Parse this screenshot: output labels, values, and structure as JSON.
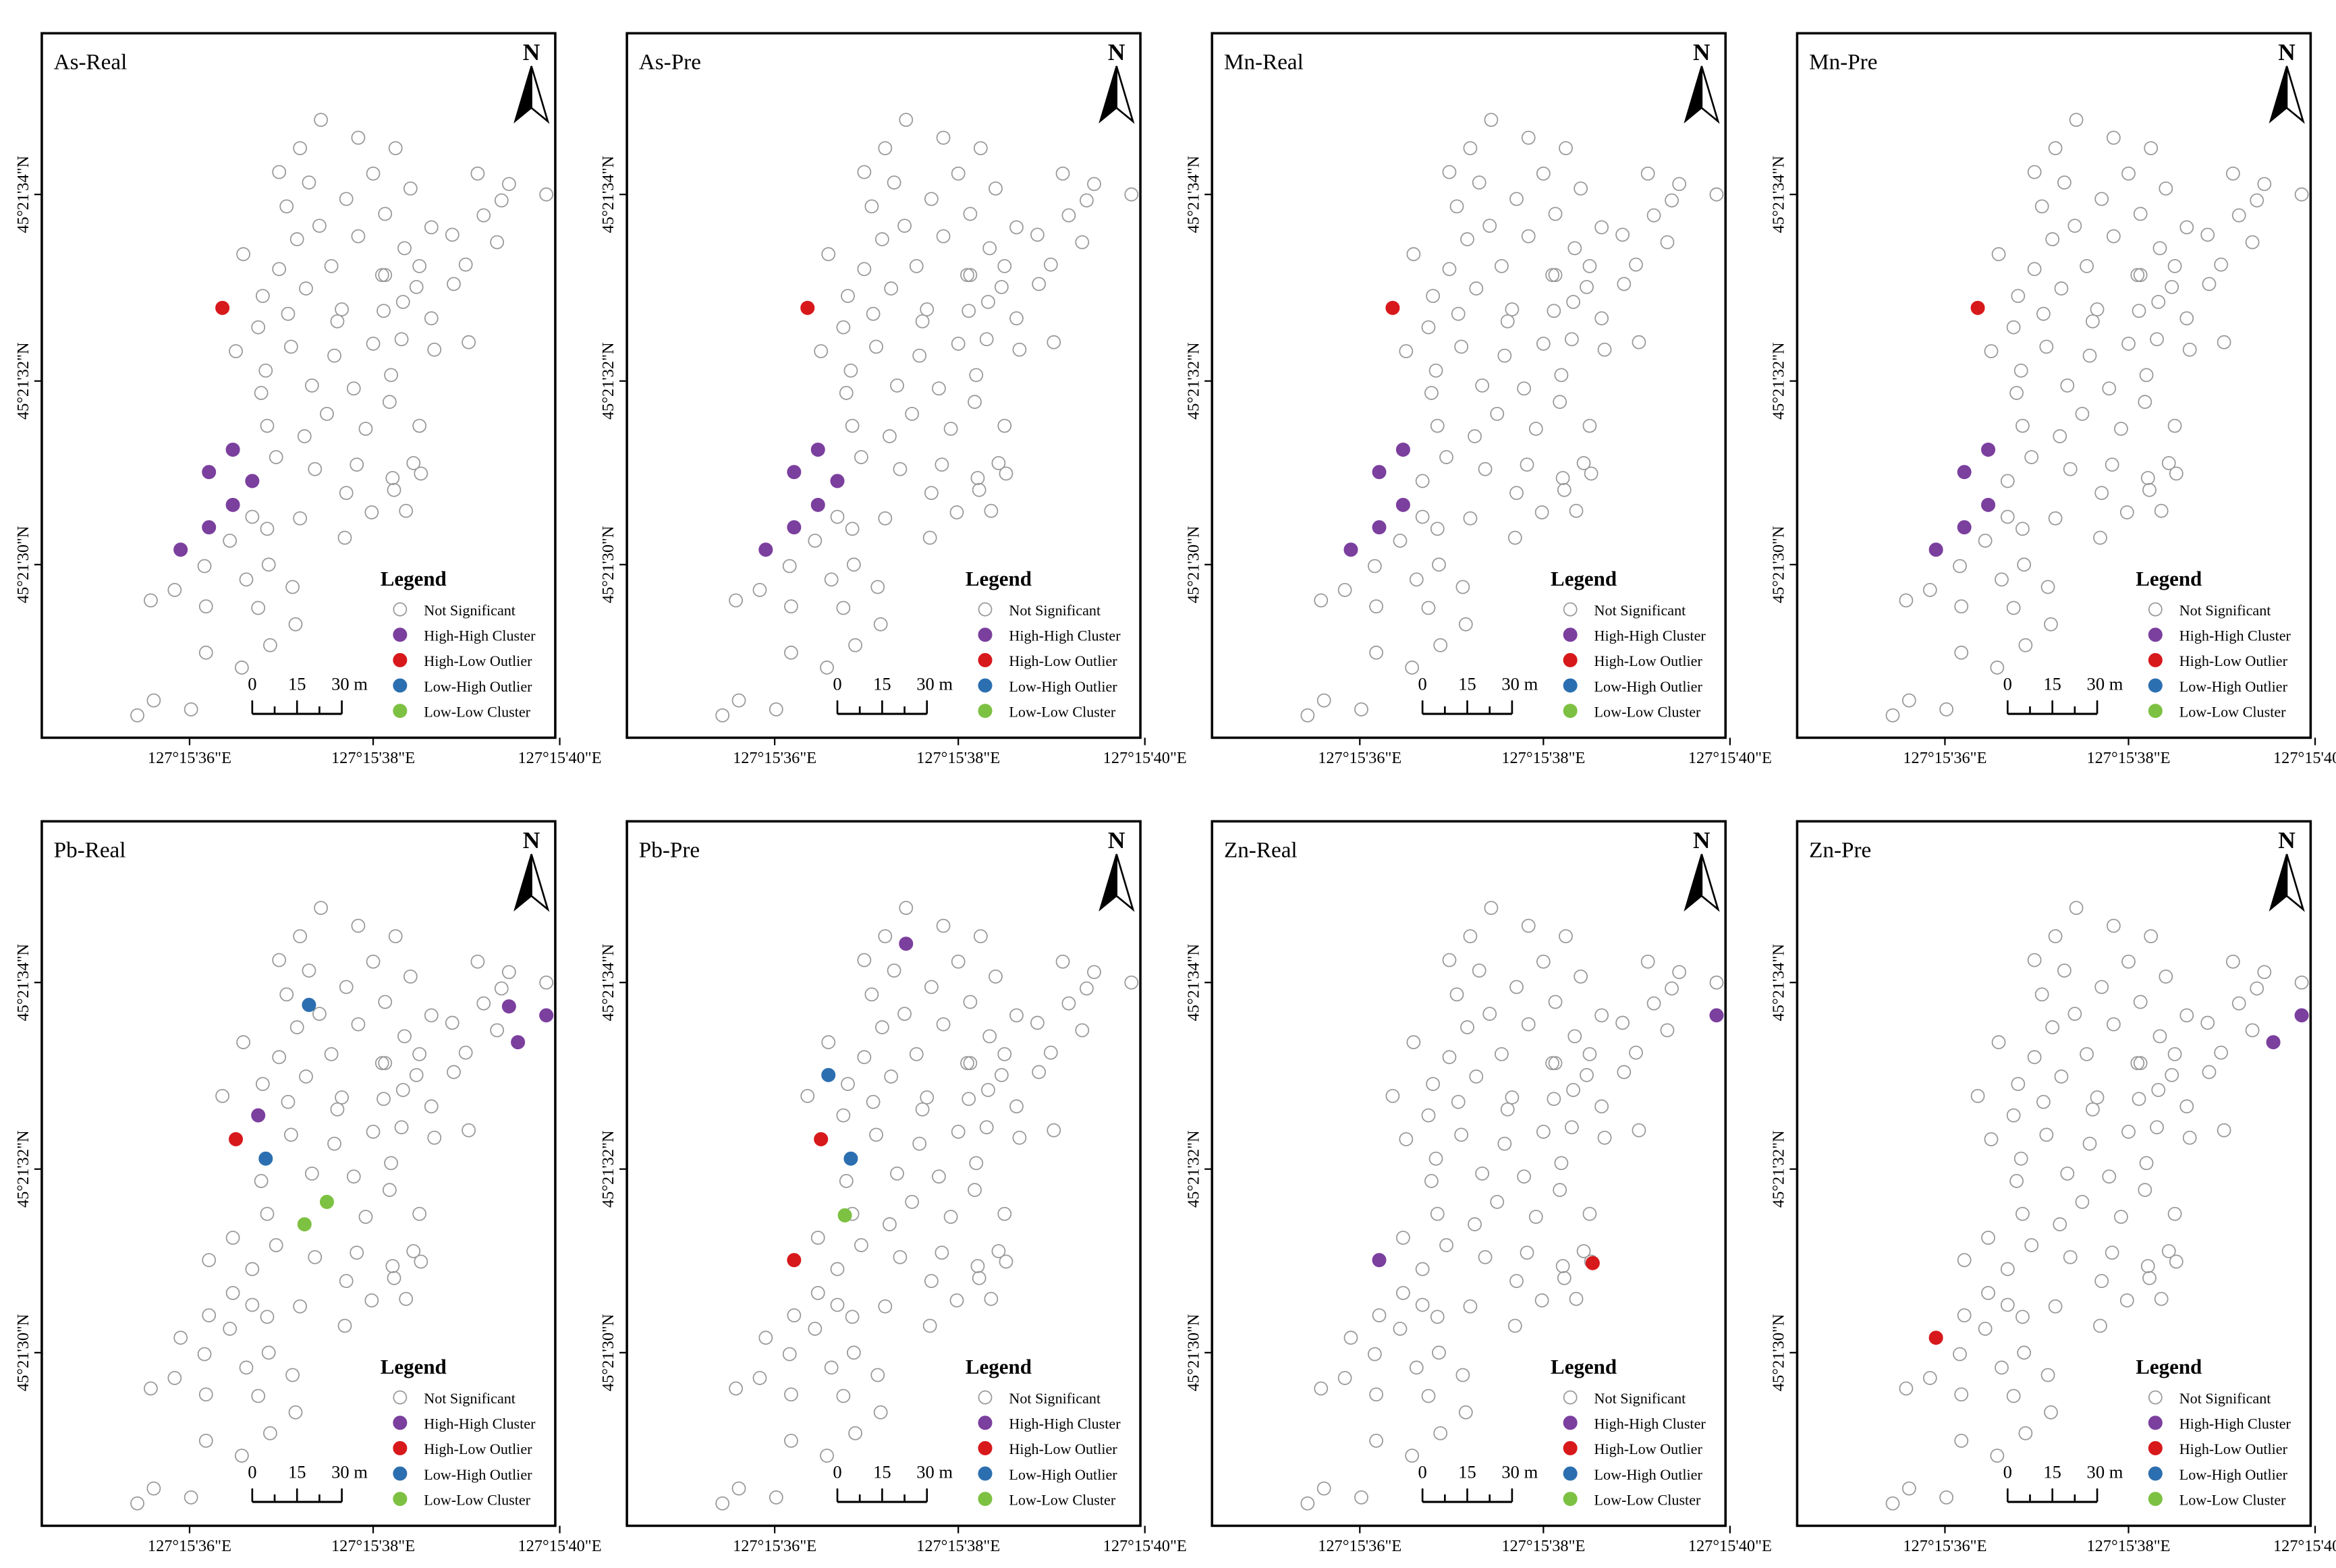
{
  "figure": {
    "x_ticks": [
      "127°15'36\"E",
      "127°15'38\"E",
      "127°15'40\"E"
    ],
    "y_ticks": [
      "45°21'34\"N",
      "45°21'32\"N",
      "45°21'30\"N"
    ],
    "north_label": "N",
    "legend": {
      "title": "Legend",
      "items": [
        {
          "key": "ns",
          "label": "Not Significant",
          "fill": "none",
          "stroke": "#999999"
        },
        {
          "key": "hh",
          "label": "High-High Cluster",
          "fill": "#7B3F9E",
          "stroke": "#7B3F9E"
        },
        {
          "key": "hl",
          "label": "High-Low Outlier",
          "fill": "#D7191C",
          "stroke": "#D7191C"
        },
        {
          "key": "lh",
          "label": "Low-High Outlier",
          "fill": "#2C6FB0",
          "stroke": "#2C6FB0"
        },
        {
          "key": "ll",
          "label": "Low-Low Cluster",
          "fill": "#7DC142",
          "stroke": "#7DC142"
        }
      ]
    },
    "scale_bar": {
      "labels": [
        "0",
        "15",
        "30 m"
      ]
    }
  },
  "panels": [
    {
      "title": "As-Real",
      "hh": [
        [
          128,
          279
        ],
        [
          112,
          294
        ],
        [
          141,
          300
        ],
        [
          128,
          316
        ],
        [
          112,
          331
        ],
        [
          93,
          346
        ]
      ],
      "hl": [
        [
          121,
          184
        ]
      ],
      "lh": [],
      "ll": []
    },
    {
      "title": "As-Pre",
      "hh": [
        [
          128,
          279
        ],
        [
          112,
          294
        ],
        [
          141,
          300
        ],
        [
          128,
          316
        ],
        [
          112,
          331
        ],
        [
          93,
          346
        ]
      ],
      "hl": [
        [
          121,
          184
        ]
      ],
      "lh": [],
      "ll": []
    },
    {
      "title": "Mn-Real",
      "hh": [
        [
          128,
          279
        ],
        [
          112,
          294
        ],
        [
          128,
          316
        ],
        [
          112,
          331
        ],
        [
          93,
          346
        ]
      ],
      "hl": [
        [
          121,
          184
        ]
      ],
      "lh": [],
      "ll": []
    },
    {
      "title": "Mn-Pre",
      "hh": [
        [
          128,
          279
        ],
        [
          112,
          294
        ],
        [
          128,
          316
        ],
        [
          112,
          331
        ],
        [
          93,
          346
        ]
      ],
      "hl": [
        [
          121,
          184
        ]
      ],
      "lh": [],
      "ll": []
    },
    {
      "title": "Pb-Real",
      "hh": [
        [
          313,
          124
        ],
        [
          338,
          130
        ],
        [
          319,
          148
        ],
        [
          145,
          197
        ]
      ],
      "hl": [
        [
          130,
          213
        ]
      ],
      "lh": [
        [
          179,
          123
        ],
        [
          150,
          226
        ]
      ],
      "ll": [
        [
          191,
          255
        ],
        [
          176,
          270
        ]
      ]
    },
    {
      "title": "Pb-Pre",
      "hh": [
        [
          187,
          82
        ]
      ],
      "hl": [
        [
          130,
          213
        ],
        [
          112,
          294
        ]
      ],
      "lh": [
        [
          135,
          170
        ],
        [
          150,
          226
        ]
      ],
      "ll": [
        [
          146,
          264
        ]
      ]
    },
    {
      "title": "Zn-Real",
      "hh": [
        [
          338,
          130
        ],
        [
          112,
          294
        ]
      ],
      "hl": [
        [
          255,
          296
        ]
      ],
      "lh": [],
      "ll": []
    },
    {
      "title": "Zn-Pre",
      "hh": [
        [
          338,
          130
        ],
        [
          319,
          148
        ]
      ],
      "hl": [
        [
          93,
          346
        ]
      ],
      "lh": [],
      "ll": []
    }
  ]
}
